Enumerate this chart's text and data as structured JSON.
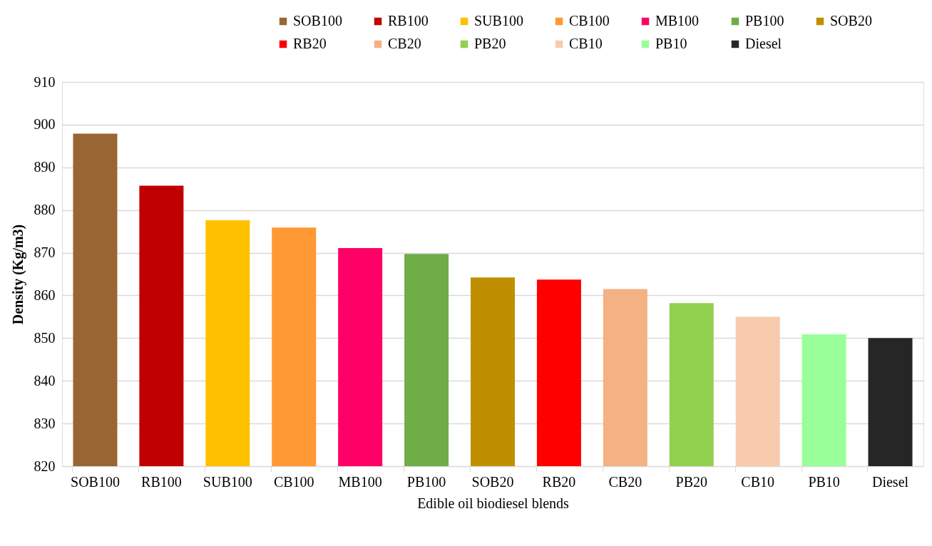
{
  "chart_data": {
    "type": "bar",
    "xlabel": "Edible oil biodiesel blends",
    "ylabel": "Density (Kg/m3)",
    "categories": [
      "SOB100",
      "RB100",
      "SUB100",
      "CB100",
      "MB100",
      "PB100",
      "SOB20",
      "RB20",
      "CB20",
      "PB20",
      "CB10",
      "PB10",
      "Diesel"
    ],
    "series": [
      {
        "name": "SOB100",
        "color": "#996633",
        "values": [
          897.9,
          null,
          null,
          null,
          null,
          null,
          null,
          null,
          null,
          null,
          null,
          null,
          null
        ]
      },
      {
        "name": "RB100",
        "color": "#c00000",
        "values": [
          null,
          885.7,
          null,
          null,
          null,
          null,
          null,
          null,
          null,
          null,
          null,
          null,
          null
        ]
      },
      {
        "name": "SUB100",
        "color": "#ffc000",
        "values": [
          null,
          null,
          877.6,
          null,
          null,
          null,
          null,
          null,
          null,
          null,
          null,
          null,
          null
        ]
      },
      {
        "name": "CB100",
        "color": "#ff9933",
        "values": [
          null,
          null,
          null,
          875.9,
          null,
          null,
          null,
          null,
          null,
          null,
          null,
          null,
          null
        ]
      },
      {
        "name": "MB100",
        "color": "#ff0066",
        "values": [
          null,
          null,
          null,
          null,
          871.1,
          null,
          null,
          null,
          null,
          null,
          null,
          null,
          null
        ]
      },
      {
        "name": "PB100",
        "color": "#70ad47",
        "values": [
          null,
          null,
          null,
          null,
          null,
          869.7,
          null,
          null,
          null,
          null,
          null,
          null,
          null
        ]
      },
      {
        "name": "SOB20",
        "color": "#bf8f00",
        "values": [
          null,
          null,
          null,
          null,
          null,
          null,
          864.2,
          null,
          null,
          null,
          null,
          null,
          null
        ]
      },
      {
        "name": "RB20",
        "color": "#ff0000",
        "values": [
          null,
          null,
          null,
          null,
          null,
          null,
          null,
          863.7,
          null,
          null,
          null,
          null,
          null
        ]
      },
      {
        "name": "CB20",
        "color": "#f4b183",
        "values": [
          null,
          null,
          null,
          null,
          null,
          null,
          null,
          null,
          861.5,
          null,
          null,
          null,
          null
        ]
      },
      {
        "name": "PB20",
        "color": "#92d050",
        "values": [
          null,
          null,
          null,
          null,
          null,
          null,
          null,
          null,
          null,
          858.2,
          null,
          null,
          null
        ]
      },
      {
        "name": "CB10",
        "color": "#f8cbad",
        "values": [
          null,
          null,
          null,
          null,
          null,
          null,
          null,
          null,
          null,
          null,
          855.0,
          null,
          null
        ]
      },
      {
        "name": "PB10",
        "color": "#99ff99",
        "values": [
          null,
          null,
          null,
          null,
          null,
          null,
          null,
          null,
          null,
          null,
          null,
          850.9,
          null
        ]
      },
      {
        "name": "Diesel",
        "color": "#262626",
        "values": [
          null,
          null,
          null,
          null,
          null,
          null,
          null,
          null,
          null,
          null,
          null,
          null,
          850.0
        ]
      }
    ],
    "ylim": [
      820,
      910
    ],
    "yticks": [
      820,
      830,
      840,
      850,
      860,
      870,
      880,
      890,
      900,
      910
    ],
    "grid": "y",
    "legend": "top right"
  }
}
